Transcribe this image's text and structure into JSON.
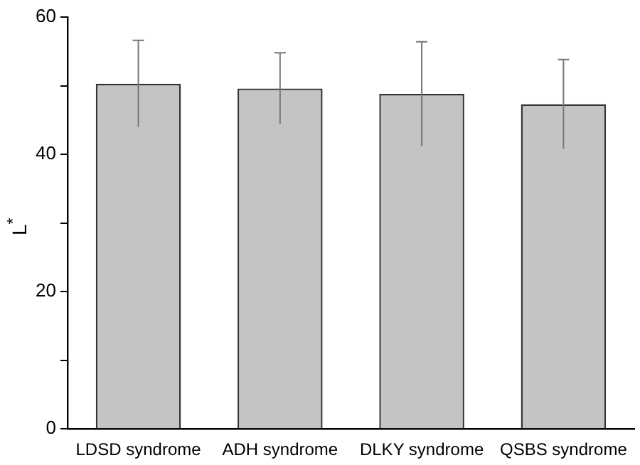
{
  "chart_data": {
    "type": "bar",
    "ylabel": "L$^{*}$",
    "categories": [
      "LDSD syndrome",
      "ADH syndrome",
      "DLKY syndrome",
      "QSBS syndrome"
    ],
    "values": [
      50.3,
      49.6,
      48.8,
      47.3
    ],
    "errors": [
      6.3,
      5.2,
      7.6,
      6.5
    ],
    "color": "#c4c4c4",
    "ylim": [
      0,
      60
    ],
    "yticks": [
      0,
      {
        "value": 10,
        "label": null
      },
      20,
      {
        "value": 30,
        "label": null
      },
      40,
      {
        "value": 50,
        "label": null
      },
      60
    ],
    "grid": false,
    "legend": false
  }
}
